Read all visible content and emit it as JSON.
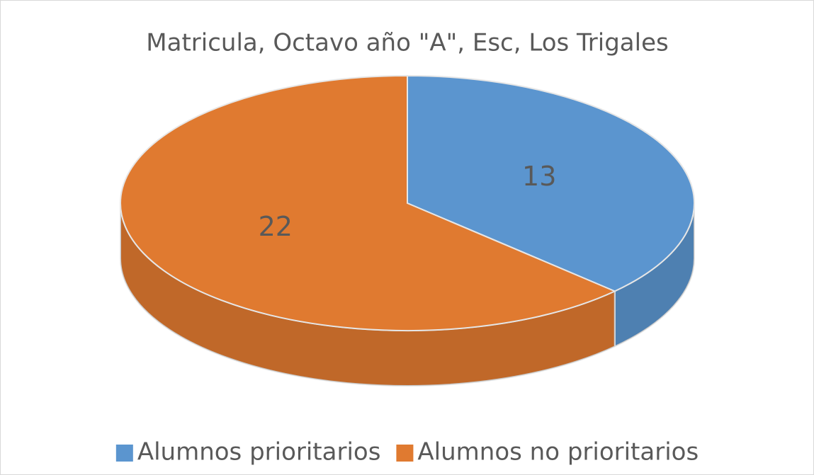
{
  "chart_data": {
    "type": "pie",
    "title": "Matricula, Octavo año \"A\", Esc, Los Trigales",
    "categories": [
      "Alumnos prioritarios",
      "Alumnos no prioritarios"
    ],
    "values": [
      13,
      22
    ],
    "colors": [
      "#5b95cf",
      "#e07a30"
    ],
    "legend": "bottom"
  }
}
